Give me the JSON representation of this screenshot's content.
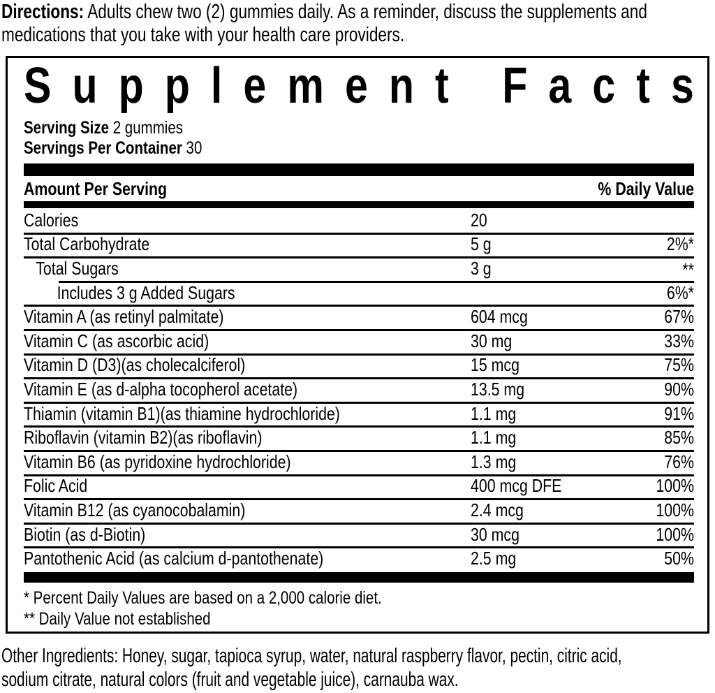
{
  "directions": {
    "label": "Directions:",
    "line1": "Adults chew two (2) gummies daily. As a reminder, discuss the supplements and",
    "line2": "medications that you take with your health care providers."
  },
  "panel": {
    "title": "Supplement Facts",
    "serving_size_label": "Serving Size",
    "serving_size_value": "2 gummies",
    "servings_per_container_label": "Servings Per Container",
    "servings_per_container_value": "30",
    "header": {
      "amount_per_serving": "Amount Per Serving",
      "percent_daily_value": "% Daily Value"
    },
    "rows": [
      {
        "name": "Calories",
        "amount": "20",
        "dv": "",
        "indent": 0,
        "sep": "none"
      },
      {
        "name": "Total Carbohydrate",
        "amount": "5 g",
        "dv": "2%*",
        "indent": 0,
        "sep": "full"
      },
      {
        "name": "Total Sugars",
        "amount": "3 g",
        "dv": "**",
        "indent": 1,
        "sep": "full",
        "dv_super": true
      },
      {
        "name": "Includes 3 g Added Sugars",
        "amount": "",
        "dv": "6%*",
        "indent": 2,
        "sep": "indent"
      },
      {
        "name": "Vitamin A (as retinyl palmitate)",
        "amount": "604 mcg",
        "dv": "67%",
        "indent": 0,
        "sep": "full"
      },
      {
        "name": "Vitamin C (as ascorbic acid)",
        "amount": "30 mg",
        "dv": "33%",
        "indent": 0,
        "sep": "full"
      },
      {
        "name": "Vitamin D (D3)(as cholecalciferol)",
        "amount": "15 mcg",
        "dv": "75%",
        "indent": 0,
        "sep": "full"
      },
      {
        "name": "Vitamin E (as d-alpha tocopherol acetate)",
        "amount": "13.5 mg",
        "dv": "90%",
        "indent": 0,
        "sep": "full"
      },
      {
        "name": "Thiamin (vitamin B1)(as thiamine hydrochloride)",
        "amount": "1.1 mg",
        "dv": "91%",
        "indent": 0,
        "sep": "full"
      },
      {
        "name": "Riboflavin (vitamin B2)(as riboflavin)",
        "amount": "1.1 mg",
        "dv": "85%",
        "indent": 0,
        "sep": "full"
      },
      {
        "name": "Vitamin B6 (as pyridoxine hydrochloride)",
        "amount": "1.3 mg",
        "dv": "76%",
        "indent": 0,
        "sep": "full"
      },
      {
        "name": "Folic Acid",
        "amount": "400 mcg DFE",
        "dv": "100%",
        "indent": 0,
        "sep": "full"
      },
      {
        "name": "Vitamin B12 (as cyanocobalamin)",
        "amount": "2.4 mcg",
        "dv": "100%",
        "indent": 0,
        "sep": "full"
      },
      {
        "name": "Biotin (as d-Biotin)",
        "amount": "30 mcg",
        "dv": "100%",
        "indent": 0,
        "sep": "full"
      },
      {
        "name": "Pantothenic Acid (as calcium d-pantothenate)",
        "amount": "2.5 mg",
        "dv": "50%",
        "indent": 0,
        "sep": "full"
      }
    ],
    "footnotes": [
      "* Percent Daily Values are based on a 2,000 calorie diet.",
      "** Daily Value not established"
    ]
  },
  "other_ingredients": {
    "line1": "Other Ingredients: Honey, sugar, tapioca syrup, water, natural raspberry flavor, pectin, citric acid,",
    "line2": "sodium citrate, natural colors (fruit and vegetable juice), carnauba wax."
  },
  "colors": {
    "text": "#000000",
    "background": "#ffffff"
  }
}
